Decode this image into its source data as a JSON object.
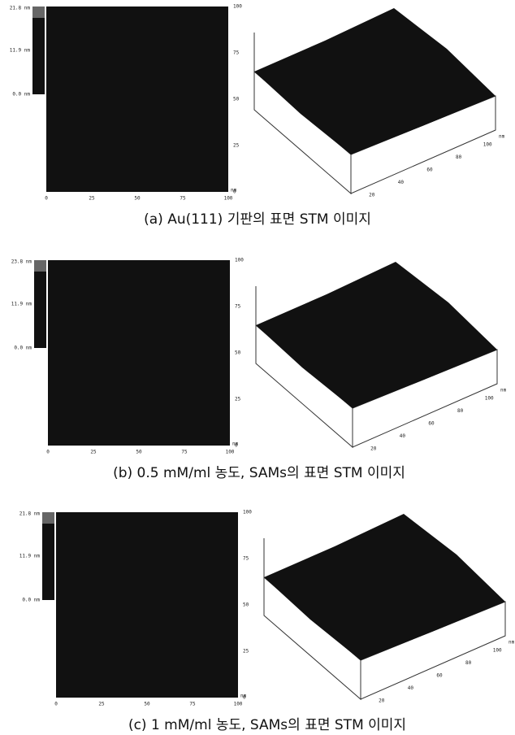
{
  "panels": [
    {
      "colorbar_labels": [
        "21.8 nm",
        "11.9 nm",
        "0.0 nm"
      ],
      "x_ticks": [
        "0",
        "25",
        "50",
        "75",
        "100"
      ],
      "x_unit": "nm",
      "y_ticks": [
        "100",
        "75",
        "50",
        "25",
        "0"
      ],
      "surface_ticks": [
        "20",
        "40",
        "60",
        "80",
        "100"
      ],
      "surface_unit": "nm",
      "caption": "(a) Au(111) 기판의 표면 STM 이미지"
    },
    {
      "colorbar_labels": [
        "23.8 nm",
        "11.9 nm",
        "0.0 nm"
      ],
      "x_ticks": [
        "0",
        "25",
        "50",
        "75",
        "100"
      ],
      "x_unit": "nm",
      "y_ticks": [
        "100",
        "75",
        "50",
        "25",
        "0"
      ],
      "surface_ticks": [
        "20",
        "40",
        "60",
        "80",
        "100"
      ],
      "surface_unit": "nm",
      "caption": "(b) 0.5 mM/ml 농도, SAMs의 표면 STM 이미지"
    },
    {
      "colorbar_labels": [
        "21.8 nm",
        "11.9 nm",
        "0.0 nm"
      ],
      "x_ticks": [
        "0",
        "25",
        "50",
        "75",
        "100"
      ],
      "x_unit": "nm",
      "y_ticks": [
        "100",
        "75",
        "50",
        "25",
        "0"
      ],
      "surface_ticks": [
        "20",
        "40",
        "60",
        "80",
        "100"
      ],
      "surface_unit": "nm",
      "caption": "(c) 1 mM/ml 농도, SAMs의 표면 STM 이미지"
    }
  ]
}
